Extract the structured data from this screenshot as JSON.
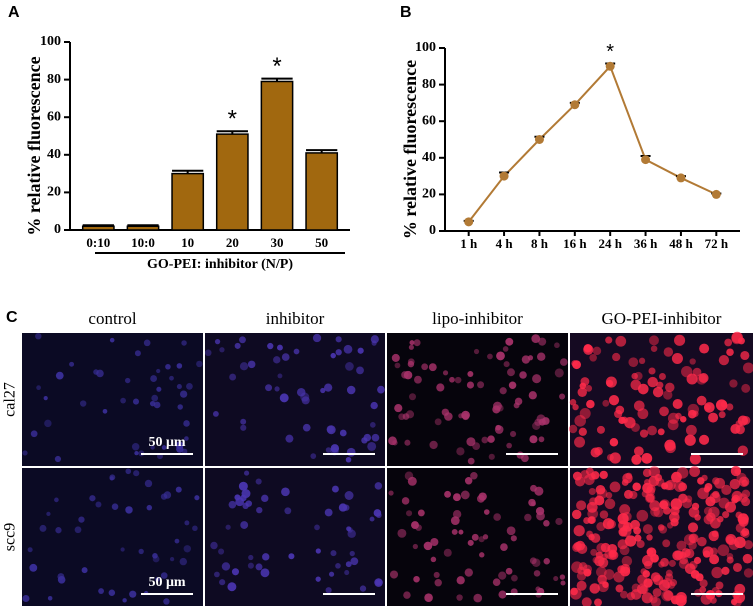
{
  "panel_labels": [
    "A",
    "B",
    "C"
  ],
  "chart_data": [
    {
      "type": "bar",
      "ylabel": "% relative fluorescence",
      "xlabel": "GO-PEI: inhibitor (N/P)",
      "categories": [
        "0:10",
        "10:0",
        "10",
        "20",
        "30",
        "50"
      ],
      "values": [
        2,
        2,
        30,
        51,
        79,
        41
      ],
      "errors": [
        0.5,
        0.5,
        1.5,
        1.5,
        1.5,
        1.5
      ],
      "color": "#a1680f",
      "ylim": [
        0,
        100
      ],
      "yticks": [
        0,
        20,
        40,
        60,
        80,
        100
      ],
      "annotations": [
        {
          "label": "*",
          "x": "20"
        },
        {
          "label": "*",
          "x": "30"
        }
      ]
    },
    {
      "type": "line",
      "ylabel": "% relative fluorescence",
      "categories": [
        "1 h",
        "4 h",
        "8 h",
        "16 h",
        "24 h",
        "36 h",
        "48 h",
        "72 h"
      ],
      "values": [
        5,
        30,
        50,
        69,
        90,
        39,
        29,
        20
      ],
      "errors": [
        0.5,
        2,
        1.5,
        1,
        1.5,
        2,
        1,
        0.5
      ],
      "color": "#b27a35",
      "ylim": [
        0,
        100
      ],
      "yticks": [
        0,
        20,
        40,
        60,
        80,
        100
      ],
      "annotations": [
        {
          "label": "*",
          "x": "24 h"
        }
      ]
    }
  ],
  "panel_c": {
    "columns": [
      "control",
      "inhibitor",
      "lipo-inhibitor",
      "GO-PEI-inhibitor"
    ],
    "rows": [
      "cal27",
      "scc9"
    ],
    "scale_bar": "50 μm"
  }
}
